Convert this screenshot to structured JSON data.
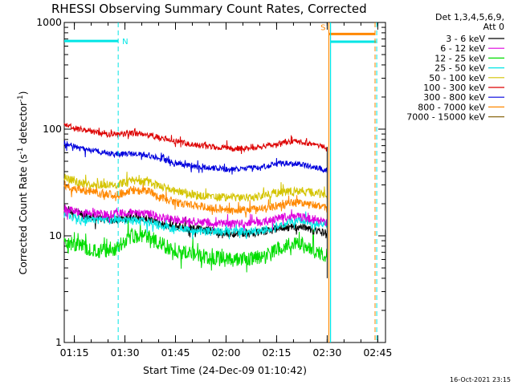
{
  "chart_data": {
    "type": "line",
    "title": "RHESSI Observing Summary Count Rates, Corrected",
    "xlabel": "Start Time (24-Dec-09 01:10:42)",
    "ylabel": "Corrected Count Rate (s",
    "ylabel_sup1": "-1",
    "ylabel_mid": " detector",
    "ylabel_sup2": "-1",
    "ylabel_end": ")",
    "yscale": "log",
    "ylim": [
      1,
      1000
    ],
    "xlim_minutes": [
      1.3,
      96.6
    ],
    "x_ticks": [
      {
        "label": "01:15",
        "minutes": 4.3
      },
      {
        "label": "01:30",
        "minutes": 19.3
      },
      {
        "label": "01:45",
        "minutes": 34.3
      },
      {
        "label": "02:00",
        "minutes": 49.3
      },
      {
        "label": "02:15",
        "minutes": 64.3
      },
      {
        "label": "02:30",
        "minutes": 79.3
      },
      {
        "label": "02:45",
        "minutes": 94.3
      }
    ],
    "y_ticks": [
      {
        "label": "1",
        "value": 1
      },
      {
        "label": "10",
        "value": 10
      },
      {
        "label": "100",
        "value": 100
      },
      {
        "label": "1000",
        "value": 1000
      }
    ],
    "legend_header": [
      "Det 1,3,4,5,6,9,",
      "Att 0"
    ],
    "x_minutes": [
      1.3,
      6.3,
      11.3,
      16.3,
      21.3,
      26.3,
      31.3,
      36.3,
      41.3,
      46.3,
      51.3,
      56.3,
      61.3,
      66.3,
      71.3,
      76.3,
      79.3
    ],
    "series": [
      {
        "name": "3 - 6 keV",
        "color": "#000000",
        "values": [
          18,
          16,
          14.5,
          14,
          15,
          14.5,
          12.5,
          12,
          11.5,
          11,
          10.5,
          10.5,
          11,
          12,
          12,
          11,
          10.5
        ]
      },
      {
        "name": "6 - 12 keV",
        "color": "#dd00dd",
        "values": [
          18,
          16.5,
          16,
          16,
          16.5,
          16,
          14.5,
          14,
          13.5,
          13,
          13,
          13,
          13.5,
          15,
          15,
          14,
          13.5
        ]
      },
      {
        "name": "12 - 25 keV",
        "color": "#00dd00",
        "values": [
          9,
          8,
          7,
          7.5,
          10,
          10,
          8,
          7,
          6.5,
          6.2,
          6,
          6,
          6.5,
          8,
          8.5,
          7,
          6.5
        ]
      },
      {
        "name": "25 - 50 keV",
        "color": "#00e5e5",
        "values": [
          16,
          14,
          14,
          14,
          14,
          13.5,
          12,
          11.5,
          11,
          11,
          11,
          11,
          11.5,
          13,
          14,
          13,
          13
        ]
      },
      {
        "name": "50 - 100 keV",
        "color": "#d4c400",
        "values": [
          35,
          31,
          30,
          30,
          33,
          32,
          28,
          25.5,
          24,
          23,
          23,
          23,
          24,
          26,
          26.5,
          25,
          24
        ]
      },
      {
        "name": "100 - 300 keV",
        "color": "#dd0000",
        "values": [
          110,
          100,
          92,
          88,
          92,
          88,
          80,
          75,
          70,
          68,
          66,
          66,
          70,
          76,
          76,
          70,
          68
        ]
      },
      {
        "name": "300 - 800 keV",
        "color": "#0000dd",
        "values": [
          75,
          66,
          62,
          58,
          59,
          57,
          51,
          47,
          44,
          43,
          42,
          43,
          45,
          48,
          47,
          43,
          41
        ]
      },
      {
        "name": "800 - 7000 keV",
        "color": "#ff8800",
        "values": [
          30,
          27,
          25,
          24,
          27,
          26,
          22,
          20,
          19,
          18,
          17.5,
          17.5,
          18,
          20,
          20.5,
          19,
          18
        ]
      },
      {
        "name": "7000 - 15000 keV",
        "color": "#8b6914",
        "values": []
      }
    ],
    "annotations": [
      {
        "label": "N",
        "color": "#00e5e5",
        "range_minutes": [
          1.3,
          17.3
        ],
        "level": 670
      },
      {
        "label": "S",
        "color": "#ff8800",
        "range_minutes": [
          79.8,
          93.5
        ],
        "level": 780
      }
    ],
    "extra_bar": {
      "color": "#00e5e5",
      "range_minutes": [
        80.3,
        93.8
      ],
      "level": 660
    },
    "dashed_lines": [
      {
        "minutes": 17.3,
        "color": "#00e5e5"
      },
      {
        "minutes": 94.0,
        "color": "#00e5e5"
      },
      {
        "minutes": 93.5,
        "color": "#ff8800"
      }
    ],
    "solid_lines": [
      {
        "minutes": 79.8,
        "color": "#ff8800"
      },
      {
        "minutes": 80.3,
        "color": "#00e5e5"
      }
    ],
    "timestamp": "16-Oct-2021 23:15"
  }
}
